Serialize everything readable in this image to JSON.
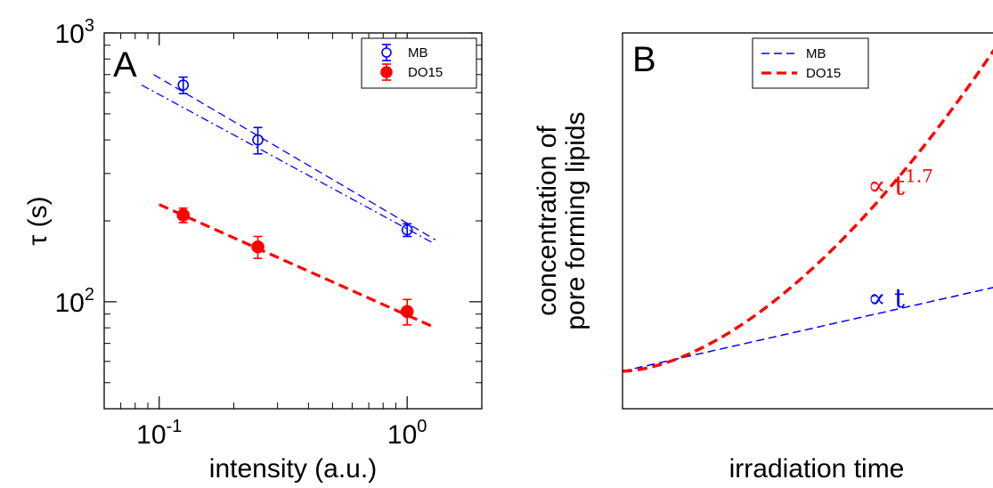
{
  "chart_data": [
    {
      "panel": "A",
      "type": "scatter",
      "xscale": "log",
      "yscale": "log",
      "xlim": [
        0.06,
        2.0
      ],
      "ylim": [
        40,
        1000
      ],
      "xlabel": "intensity (a.u.)",
      "ylabel": "τ (s)",
      "xticks": [
        {
          "value": 0.1,
          "base": "10",
          "exp": "-1"
        },
        {
          "value": 1,
          "base": "10",
          "exp": "0"
        }
      ],
      "yticks": [
        {
          "value": 100,
          "base": "10",
          "exp": "2"
        },
        {
          "value": 1000,
          "base": "10",
          "exp": "3"
        }
      ],
      "legend": {
        "position": "top-right",
        "entries": [
          "MB",
          "DO15"
        ]
      },
      "series": [
        {
          "name": "MB",
          "color": "#0000ff",
          "marker": "open-circle",
          "x": [
            0.125,
            0.25,
            1.0
          ],
          "y": [
            640,
            400,
            185
          ],
          "yerr": [
            45,
            45,
            10
          ],
          "fits": [
            {
              "style": "dashed",
              "x": [
                0.095,
                1.3
              ],
              "y": [
                700,
                170
              ]
            },
            {
              "style": "dashdot",
              "x": [
                0.085,
                1.28
              ],
              "y": [
                640,
                165
              ]
            }
          ]
        },
        {
          "name": "DO15",
          "color": "#ff0000",
          "marker": "filled-circle",
          "x": [
            0.125,
            0.25,
            1.0
          ],
          "y": [
            210,
            160,
            92
          ],
          "yerr": [
            13,
            15,
            10
          ],
          "fits": [
            {
              "style": "dashed-thick",
              "x": [
                0.1,
                1.3
              ],
              "y": [
                230,
                80
              ]
            }
          ]
        }
      ]
    },
    {
      "panel": "B",
      "type": "line",
      "xlabel": "irradiation time",
      "ylabel": [
        "concentration of",
        "pore forming lipids"
      ],
      "xlim": [
        0,
        1
      ],
      "ylim": [
        0,
        1
      ],
      "legend": {
        "position": "top-center",
        "entries": [
          "MB",
          "DO15"
        ]
      },
      "series": [
        {
          "name": "MB",
          "color": "#0000ff",
          "style": "dashed",
          "function": "linear",
          "exponent": 1,
          "y0": 0.1,
          "y_end": 0.33
        },
        {
          "name": "DO15",
          "color": "#ff0000",
          "style": "dashed-thick",
          "function": "power",
          "exponent": 1.7,
          "y0": 0.1,
          "y_end": 1.0
        }
      ],
      "annotations": [
        {
          "text": "∝ t",
          "sup": "1.7",
          "color": "#ff0000",
          "x": 0.64,
          "y": 0.57
        },
        {
          "text": "∝ t",
          "sup": "",
          "color": "#0000ff",
          "x": 0.64,
          "y": 0.27
        }
      ]
    }
  ]
}
